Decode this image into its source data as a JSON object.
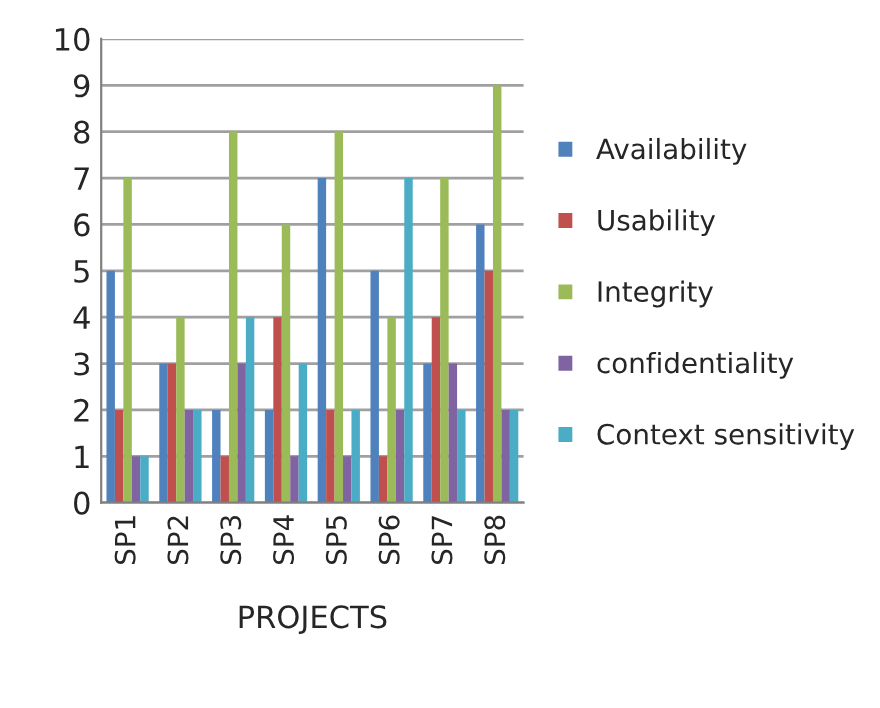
{
  "chart_data": {
    "type": "bar",
    "xlabel": "PROJECTS",
    "categories": [
      "SP1",
      "SP2",
      "SP3",
      "SP4",
      "SP5",
      "SP6",
      "SP7",
      "SP8"
    ],
    "series": [
      {
        "name": "Availability",
        "color": "#4f81bd",
        "values": [
          5,
          3,
          2,
          2,
          7,
          5,
          3,
          6
        ]
      },
      {
        "name": "Usability",
        "color": "#c0504d",
        "values": [
          2,
          3,
          1,
          4,
          2,
          1,
          4,
          5
        ]
      },
      {
        "name": "Integrity",
        "color": "#9bbb59",
        "values": [
          7,
          4,
          8,
          6,
          8,
          4,
          7,
          9
        ]
      },
      {
        "name": "confidentiality",
        "color": "#8064a2",
        "values": [
          1,
          2,
          3,
          1,
          1,
          2,
          3,
          2
        ]
      },
      {
        "name": "Context sensitivity",
        "color": "#4bacc6",
        "values": [
          1,
          2,
          4,
          3,
          2,
          7,
          2,
          2
        ]
      }
    ],
    "ylim": [
      0,
      10
    ],
    "yticks": [
      0,
      1,
      2,
      3,
      4,
      5,
      6,
      7,
      8,
      9,
      10
    ],
    "grid": "y",
    "legend": "right"
  }
}
